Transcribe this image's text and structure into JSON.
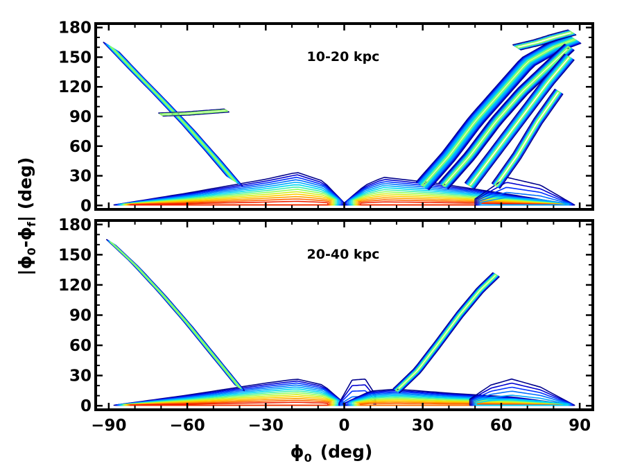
{
  "chart_data": {
    "type": "contour",
    "xlabel": "ϕ",
    "xlabel_sub": "0",
    "xlabel_unit": "(deg)",
    "ylabel_parts": [
      "|ϕ",
      "0",
      "-ϕ",
      "f",
      "| (deg)"
    ],
    "xlim": [
      -95,
      95
    ],
    "ylim": [
      -4,
      184
    ],
    "xticks": [
      -90,
      -60,
      -30,
      0,
      30,
      60,
      90
    ],
    "xtick_labels": [
      "−90",
      "−60",
      "−30",
      "0",
      "30",
      "60",
      "90"
    ],
    "yticks": [
      0,
      30,
      60,
      90,
      120,
      150,
      180
    ],
    "ytick_labels": [
      "0",
      "30",
      "60",
      "90",
      "120",
      "150",
      "180"
    ],
    "level_colors": [
      "#00008b",
      "#0000d0",
      "#0030ff",
      "#0070ff",
      "#00a8ff",
      "#00d8f0",
      "#40f0b0",
      "#90ff60",
      "#d0f020",
      "#ffd000",
      "#ffa000",
      "#ff6000",
      "#f02000",
      "#b00000"
    ],
    "panels": [
      {
        "label": "10-20 kpc",
        "ridges": [
          {
            "name": "left diagonal band",
            "x": [
              -89,
              -80,
              -70,
              -60,
              -50,
              -42
            ],
            "y": [
              160,
              135,
              108,
              80,
              50,
              25
            ],
            "width": 5,
            "levels": 9
          },
          {
            "name": "right diagonal band 1",
            "x": [
              30,
              40,
              50,
              60,
              70,
              80,
              88
            ],
            "y": [
              20,
              50,
              85,
              115,
              145,
              160,
              168
            ],
            "width": 4,
            "levels": 9
          },
          {
            "name": "right diagonal band 2",
            "x": [
              38,
              48,
              58,
              68,
              78,
              86
            ],
            "y": [
              20,
              50,
              85,
              115,
              140,
              160
            ],
            "width": 3,
            "levels": 6
          },
          {
            "name": "right diagonal band 3",
            "x": [
              48,
              58,
              68,
              78,
              86
            ],
            "y": [
              20,
              55,
              90,
              125,
              150
            ],
            "width": 3,
            "levels": 5
          },
          {
            "name": "right diagonal band 4",
            "x": [
              58,
              66,
              74,
              82
            ],
            "y": [
              20,
              50,
              85,
              115
            ],
            "width": 2.5,
            "levels": 4
          },
          {
            "name": "dashed streak",
            "x": [
              -70,
              -60,
              -50,
              -45
            ],
            "y": [
              92,
              93,
              95,
              96
            ],
            "width": 1.5,
            "levels": 2
          },
          {
            "name": "upper-right cap",
            "x": [
              66,
              74,
              80,
              87
            ],
            "y": [
              160,
              165,
              170,
              175
            ],
            "width": 2.5,
            "levels": 3
          }
        ],
        "wedges": [
          {
            "name": "left base wedge",
            "x": [
              -88,
              -60,
              -30,
              -18,
              -8,
              0
            ],
            "y": [
              0,
              12,
              26,
              33,
              24,
              2
            ],
            "levels": 13
          },
          {
            "name": "right base wedge",
            "x": [
              0,
              8,
              15,
              35,
              60,
              88
            ],
            "y": [
              2,
              20,
              28,
              22,
              12,
              0
            ],
            "levels": 13
          },
          {
            "name": "right tail lobe",
            "x": [
              50,
              62,
              75,
              88
            ],
            "y": [
              6,
              28,
              20,
              0
            ],
            "levels": 5
          }
        ]
      },
      {
        "label": "20-40 kpc",
        "ridges": [
          {
            "name": "left diagonal band",
            "x": [
              -89,
              -80,
              -70,
              -60,
              -50,
              -40
            ],
            "y": [
              162,
              140,
              112,
              82,
              50,
              18
            ],
            "width": 3,
            "levels": 6
          },
          {
            "name": "right scattered band",
            "x": [
              20,
              28,
              36,
              44,
              52,
              58
            ],
            "y": [
              15,
              35,
              62,
              90,
              115,
              130
            ],
            "width": 2,
            "levels": 4
          }
        ],
        "wedges": [
          {
            "name": "left base wedge",
            "x": [
              -88,
              -60,
              -30,
              -18,
              -8,
              0
            ],
            "y": [
              0,
              10,
              22,
              26,
              20,
              2
            ],
            "levels": 13
          },
          {
            "name": "center bump",
            "x": [
              -2,
              3,
              8,
              12
            ],
            "y": [
              2,
              25,
              26,
              10
            ],
            "levels": 4
          },
          {
            "name": "right base wedge",
            "x": [
              0,
              10,
              20,
              40,
              65,
              88
            ],
            "y": [
              2,
              14,
              16,
              12,
              8,
              0
            ],
            "levels": 12
          },
          {
            "name": "right tail lobe",
            "x": [
              48,
              56,
              64,
              75,
              88
            ],
            "y": [
              6,
              20,
              26,
              18,
              0
            ],
            "levels": 6
          }
        ]
      }
    ]
  }
}
